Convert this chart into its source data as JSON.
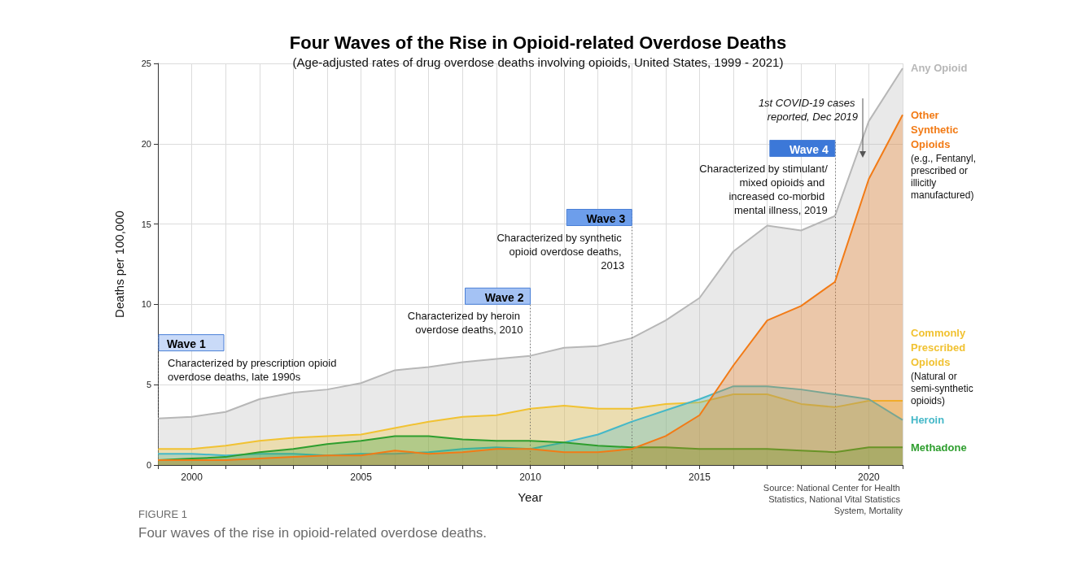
{
  "chart_data": {
    "type": "area",
    "title": "Four Waves of the Rise in Opioid-related Overdose Deaths",
    "subtitle": "(Age-adjusted rates of drug overdose deaths involving opioids, United States, 1999 - 2021)",
    "xlabel": "Year",
    "ylabel": "Deaths per 100,000",
    "x": [
      1999,
      2000,
      2001,
      2002,
      2003,
      2004,
      2005,
      2006,
      2007,
      2008,
      2009,
      2010,
      2011,
      2012,
      2013,
      2014,
      2015,
      2016,
      2017,
      2018,
      2019,
      2020,
      2021
    ],
    "series": [
      {
        "name": "Any Opioid",
        "color": "#b7b7b7",
        "values": [
          2.9,
          3.0,
          3.3,
          4.1,
          4.5,
          4.7,
          5.1,
          5.9,
          6.1,
          6.4,
          6.6,
          6.8,
          7.3,
          7.4,
          7.9,
          9.0,
          10.4,
          13.3,
          14.9,
          14.6,
          15.5,
          21.4,
          24.7
        ]
      },
      {
        "name": "Other Synthetic Opioids",
        "color": "#f27b16",
        "values": [
          0.3,
          0.3,
          0.3,
          0.4,
          0.5,
          0.6,
          0.6,
          0.9,
          0.7,
          0.8,
          1.0,
          1.0,
          0.8,
          0.8,
          1.0,
          1.8,
          3.1,
          6.2,
          9.0,
          9.9,
          11.4,
          17.8,
          21.8
        ]
      },
      {
        "name": "Commonly Prescribed Opioids",
        "color": "#f1c232",
        "values": [
          1.0,
          1.0,
          1.2,
          1.5,
          1.7,
          1.8,
          1.9,
          2.3,
          2.7,
          3.0,
          3.1,
          3.5,
          3.7,
          3.5,
          3.5,
          3.8,
          3.9,
          4.4,
          4.4,
          3.8,
          3.6,
          4.0,
          4.0
        ]
      },
      {
        "name": "Heroin",
        "color": "#45b8c8",
        "values": [
          0.7,
          0.7,
          0.6,
          0.7,
          0.7,
          0.6,
          0.7,
          0.7,
          0.8,
          1.0,
          1.1,
          1.0,
          1.4,
          1.9,
          2.7,
          3.4,
          4.1,
          4.9,
          4.9,
          4.7,
          4.4,
          4.1,
          2.8
        ]
      },
      {
        "name": "Methadone",
        "color": "#2e9e2e",
        "values": [
          0.3,
          0.4,
          0.5,
          0.8,
          1.0,
          1.3,
          1.5,
          1.8,
          1.8,
          1.6,
          1.5,
          1.5,
          1.4,
          1.2,
          1.1,
          1.1,
          1.0,
          1.0,
          1.0,
          0.9,
          0.8,
          1.1,
          1.1
        ]
      }
    ],
    "xlim": [
      1999,
      2021
    ],
    "xticks": [
      {
        "value": 1999,
        "label": null
      },
      2000,
      {
        "value": 2001,
        "label": null
      },
      {
        "value": 2002,
        "label": null
      },
      {
        "value": 2003,
        "label": null
      },
      {
        "value": 2004,
        "label": null
      },
      2005,
      {
        "value": 2006,
        "label": null
      },
      {
        "value": 2007,
        "label": null
      },
      {
        "value": 2008,
        "label": null
      },
      {
        "value": 2009,
        "label": null
      },
      2010,
      {
        "value": 2011,
        "label": null
      },
      {
        "value": 2012,
        "label": null
      },
      {
        "value": 2013,
        "label": null
      },
      {
        "value": 2014,
        "label": null
      },
      2015,
      {
        "value": 2016,
        "label": null
      },
      {
        "value": 2017,
        "label": null
      },
      {
        "value": 2018,
        "label": null
      },
      {
        "value": 2019,
        "label": null
      },
      2020,
      {
        "value": 2021,
        "label": null
      }
    ],
    "ylim": [
      0,
      25
    ],
    "yticks": [
      0,
      5,
      10,
      15,
      20,
      25
    ],
    "grid": true,
    "ref_lines": [
      {
        "axis": "x",
        "value": 1999,
        "label": "Wave 1",
        "color": "#666666",
        "line_style": "dotted"
      },
      {
        "axis": "x",
        "value": 2010,
        "label": "Wave 2",
        "color": "#666666",
        "line_style": "dotted"
      },
      {
        "axis": "x",
        "value": 2013,
        "label": "Wave 3",
        "color": "#666666",
        "line_style": "dotted"
      },
      {
        "axis": "x",
        "value": 2019,
        "label": "Wave 4",
        "color": "#666666",
        "line_style": "dotted"
      }
    ],
    "annotations": [
      "(e.g., Fentanyl, prescribed or illicitly manufactured)",
      "(Natural or semi-synthetic opioids)",
      "Source: National Center for Health Statistics, National Vital Statistics System, Mortality",
      "FIGURE 1",
      "Four waves of the rise in opioid-related overdose deaths.",
      {
        "text": "Characterized by prescription opioid overdose deaths, late 1990s",
        "x": 1999,
        "y": 6.8
      },
      {
        "text": "Characterized by heroin overdose deaths, 2010",
        "x": 2010,
        "y": 9.7
      },
      {
        "text": "Characterized by synthetic opioid overdose deaths, 2013",
        "x": 2013,
        "y": 14.6
      },
      {
        "text": "Characterized by stimulant/mixed opioids and increased co-morbid mental illness, 2019",
        "x": 2019,
        "y": 18.9
      },
      "1st COVID-19 cases reported, Dec 2019"
    ]
  }
}
